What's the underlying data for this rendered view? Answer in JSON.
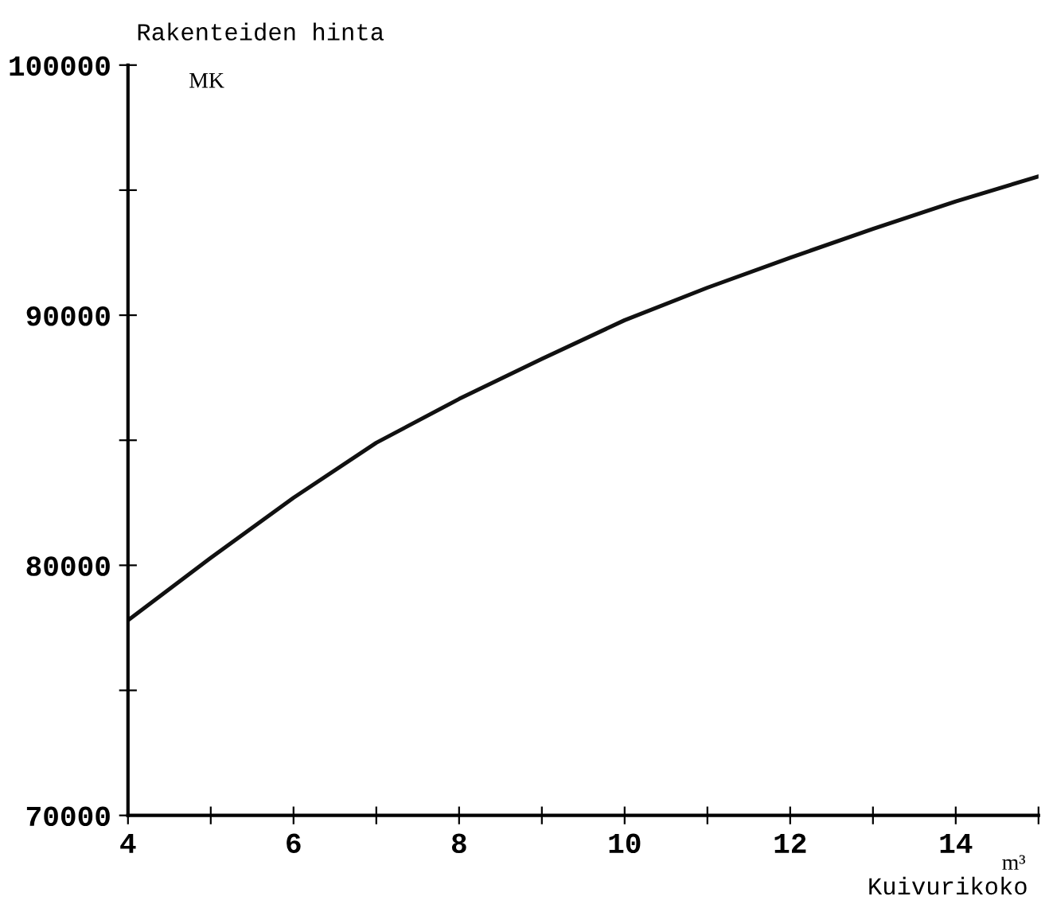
{
  "chart_data": {
    "type": "line",
    "ylabel": "Rakenteiden hinta",
    "xlabel": "Kuivurikoko",
    "annotations": [
      "MK",
      "m³"
    ],
    "x": [
      4,
      5,
      6,
      7,
      8,
      9,
      10,
      11,
      12,
      13,
      14,
      15
    ],
    "series": [
      {
        "color": "#111111",
        "values": [
          77800,
          80300,
          82700,
          84900,
          86650,
          88250,
          89800,
          91100,
          92300,
          93450,
          94550,
          95550
        ]
      }
    ],
    "xlim": [
      4,
      15
    ],
    "xticks": [
      4,
      {
        "value": 5,
        "label": null
      },
      6,
      {
        "value": 7,
        "label": null
      },
      8,
      {
        "value": 9,
        "label": null
      },
      10,
      {
        "value": 11,
        "label": null
      },
      12,
      {
        "value": 13,
        "label": null
      },
      14,
      {
        "value": 15,
        "label": null
      }
    ],
    "ylim": [
      70000,
      100000
    ],
    "yticks": [
      70000,
      {
        "value": 75000,
        "label": null
      },
      80000,
      {
        "value": 85000,
        "label": null
      },
      90000,
      {
        "value": 95000,
        "label": null
      },
      100000
    ],
    "grid": false,
    "legend": false,
    "marker": "none",
    "line_style": "solid"
  }
}
